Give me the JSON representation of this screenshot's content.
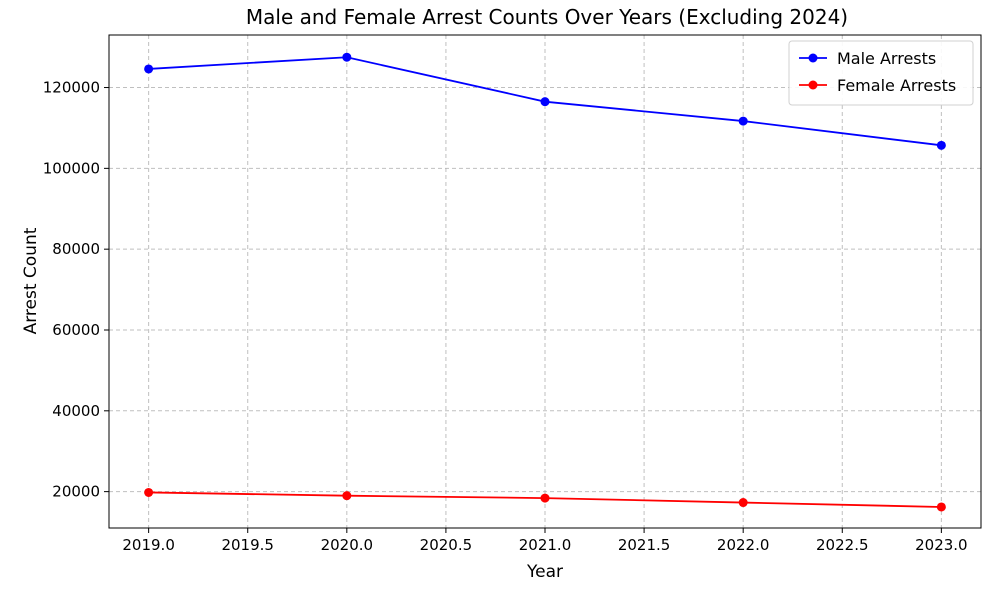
{
  "chart_data": {
    "type": "line",
    "title": "Male and Female Arrest Counts Over Years (Excluding 2024)",
    "xlabel": "Year",
    "ylabel": "Arrest Count",
    "x": [
      2019,
      2020,
      2021,
      2022,
      2023
    ],
    "xlim": [
      2018.8,
      2023.2
    ],
    "ylim": [
      11000,
      133000
    ],
    "xticks": [
      2019.0,
      2019.5,
      2020.0,
      2020.5,
      2021.0,
      2021.5,
      2022.0,
      2022.5,
      2023.0
    ],
    "xtick_labels": [
      "2019.0",
      "2019.5",
      "2020.0",
      "2020.5",
      "2021.0",
      "2021.5",
      "2022.0",
      "2022.5",
      "2023.0"
    ],
    "yticks": [
      20000,
      40000,
      60000,
      80000,
      100000,
      120000
    ],
    "ytick_labels": [
      "20000",
      "40000",
      "60000",
      "80000",
      "100000",
      "120000"
    ],
    "grid": true,
    "legend_position": "top-right",
    "series": [
      {
        "name": "Male Arrests",
        "color": "#0000ff",
        "marker": "circle",
        "values": [
          124600,
          127500,
          116500,
          111700,
          105700
        ]
      },
      {
        "name": "Female Arrests",
        "color": "#ff0000",
        "marker": "circle",
        "values": [
          19800,
          19000,
          18400,
          17300,
          16200
        ]
      }
    ]
  }
}
